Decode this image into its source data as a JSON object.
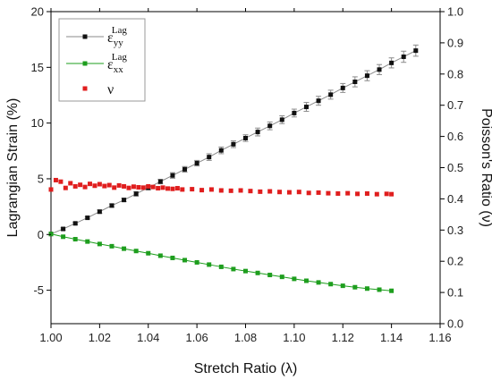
{
  "chart_data": {
    "type": "line",
    "xlabel": "Stretch Ratio (λ)",
    "ylabel_left": "Lagrangian Strain (%)",
    "ylabel_right": "Poisson's Ratio (ν)",
    "xlim": [
      1.0,
      1.16
    ],
    "ylim_left": [
      -8,
      20
    ],
    "ylim_right": [
      0.0,
      1.0
    ],
    "x_ticks": [
      "1.00",
      "1.02",
      "1.04",
      "1.06",
      "1.08",
      "1.10",
      "1.12",
      "1.14",
      "1.16"
    ],
    "y_left_ticks": [
      "-5",
      "0",
      "5",
      "10",
      "15",
      "20"
    ],
    "y_right_ticks": [
      "0.0",
      "0.1",
      "0.2",
      "0.3",
      "0.4",
      "0.5",
      "0.6",
      "0.7",
      "0.8",
      "0.9",
      "1.0"
    ],
    "grid": false,
    "legend_position": "top-left",
    "legend": [
      {
        "base": "ε",
        "sub": "yy",
        "sup": "Lag"
      },
      {
        "base": "ε",
        "sub": "xx",
        "sup": "Lag"
      },
      {
        "base": "ν",
        "sub": "",
        "sup": ""
      }
    ],
    "series": [
      {
        "key": "eps_yy",
        "axis": "left",
        "color": "#111111",
        "line_color": "#8a8a8a",
        "marker": "square",
        "x": [
          1.0,
          1.005,
          1.01,
          1.015,
          1.02,
          1.025,
          1.03,
          1.035,
          1.04,
          1.045,
          1.05,
          1.055,
          1.06,
          1.065,
          1.07,
          1.075,
          1.08,
          1.085,
          1.09,
          1.095,
          1.1,
          1.105,
          1.11,
          1.115,
          1.12,
          1.125,
          1.13,
          1.135,
          1.14,
          1.145,
          1.15
        ],
        "y": [
          0.05,
          0.5,
          1.0,
          1.5,
          2.05,
          2.6,
          3.1,
          3.65,
          4.2,
          4.75,
          5.3,
          5.85,
          6.4,
          6.95,
          7.55,
          8.1,
          8.65,
          9.2,
          9.75,
          10.3,
          10.9,
          11.45,
          12.0,
          12.55,
          13.15,
          13.7,
          14.25,
          14.8,
          15.4,
          15.95,
          16.5
        ],
        "err": [
          0.0,
          0.1,
          0.1,
          0.1,
          0.15,
          0.15,
          0.15,
          0.2,
          0.2,
          0.2,
          0.25,
          0.25,
          0.25,
          0.3,
          0.3,
          0.3,
          0.3,
          0.35,
          0.35,
          0.35,
          0.35,
          0.4,
          0.4,
          0.4,
          0.4,
          0.45,
          0.45,
          0.45,
          0.45,
          0.5,
          0.5
        ]
      },
      {
        "key": "eps_xx",
        "axis": "left",
        "color": "#1e9e1e",
        "line_color": "#1e9e1e",
        "marker": "square",
        "x": [
          1.0,
          1.005,
          1.01,
          1.015,
          1.02,
          1.025,
          1.03,
          1.035,
          1.04,
          1.045,
          1.05,
          1.055,
          1.06,
          1.065,
          1.07,
          1.075,
          1.08,
          1.085,
          1.09,
          1.095,
          1.1,
          1.105,
          1.11,
          1.115,
          1.12,
          1.125,
          1.13,
          1.135,
          1.14
        ],
        "y": [
          0.05,
          -0.2,
          -0.42,
          -0.63,
          -0.85,
          -1.05,
          -1.27,
          -1.48,
          -1.68,
          -1.9,
          -2.1,
          -2.3,
          -2.5,
          -2.7,
          -2.9,
          -3.1,
          -3.28,
          -3.45,
          -3.63,
          -3.8,
          -3.98,
          -4.15,
          -4.3,
          -4.45,
          -4.6,
          -4.73,
          -4.85,
          -4.95,
          -5.05
        ]
      },
      {
        "key": "nu",
        "axis": "right",
        "color": "#e01e1e",
        "marker": "square",
        "x": [
          1.0,
          1.002,
          1.004,
          1.006,
          1.008,
          1.01,
          1.012,
          1.014,
          1.016,
          1.018,
          1.02,
          1.022,
          1.024,
          1.026,
          1.028,
          1.03,
          1.032,
          1.034,
          1.036,
          1.038,
          1.04,
          1.042,
          1.044,
          1.046,
          1.048,
          1.05,
          1.052,
          1.054,
          1.058,
          1.062,
          1.066,
          1.07,
          1.074,
          1.078,
          1.082,
          1.086,
          1.09,
          1.094,
          1.098,
          1.102,
          1.106,
          1.11,
          1.114,
          1.118,
          1.122,
          1.126,
          1.13,
          1.134,
          1.138,
          1.14
        ],
        "y": [
          0.43,
          0.46,
          0.455,
          0.435,
          0.45,
          0.44,
          0.445,
          0.438,
          0.448,
          0.442,
          0.447,
          0.441,
          0.444,
          0.436,
          0.443,
          0.44,
          0.435,
          0.439,
          0.437,
          0.436,
          0.44,
          0.438,
          0.434,
          0.436,
          0.433,
          0.432,
          0.434,
          0.43,
          0.431,
          0.428,
          0.43,
          0.427,
          0.426,
          0.427,
          0.425,
          0.423,
          0.424,
          0.422,
          0.421,
          0.422,
          0.419,
          0.42,
          0.418,
          0.417,
          0.418,
          0.416,
          0.417,
          0.415,
          0.416,
          0.415
        ]
      }
    ]
  }
}
